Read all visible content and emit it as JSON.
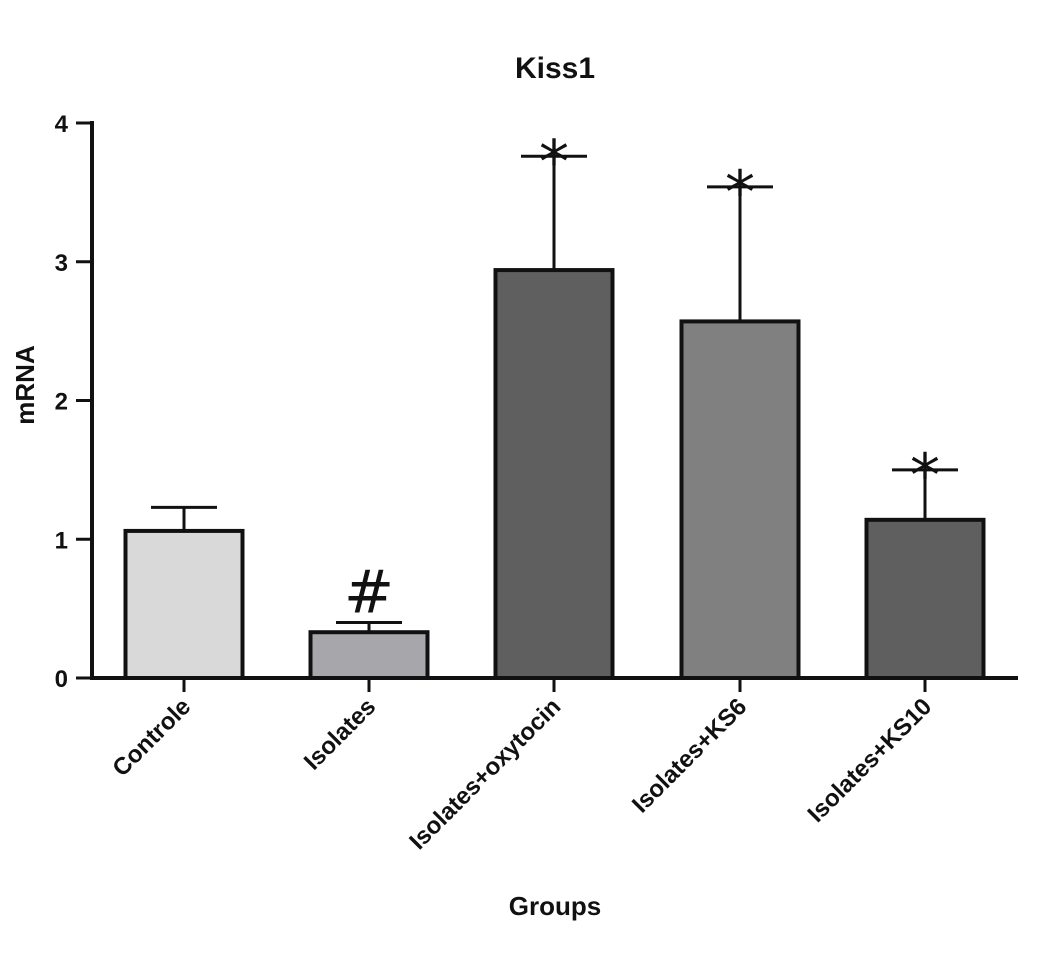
{
  "chart_data": {
    "type": "bar",
    "title": "Kiss1",
    "xlabel": "Groups",
    "ylabel": "mRNA",
    "ylim": [
      0,
      4
    ],
    "yticks": [
      "0",
      "1",
      "2",
      "3",
      "4"
    ],
    "grid": false,
    "categories": [
      "Controle",
      "Isolates",
      "Isolates+oxytocin",
      "Isolates+KS6",
      "Isolates+KS10"
    ],
    "values": [
      1.06,
      0.33,
      2.94,
      2.57,
      1.14
    ],
    "error": [
      0.17,
      0.07,
      0.82,
      0.97,
      0.36
    ],
    "annotations": [
      "",
      "#",
      "*",
      "*",
      "*"
    ],
    "colors": [
      "#d9d9d9",
      "#a6a6ab",
      "#5f5f5f",
      "#808080",
      "#5f5f5f"
    ]
  }
}
